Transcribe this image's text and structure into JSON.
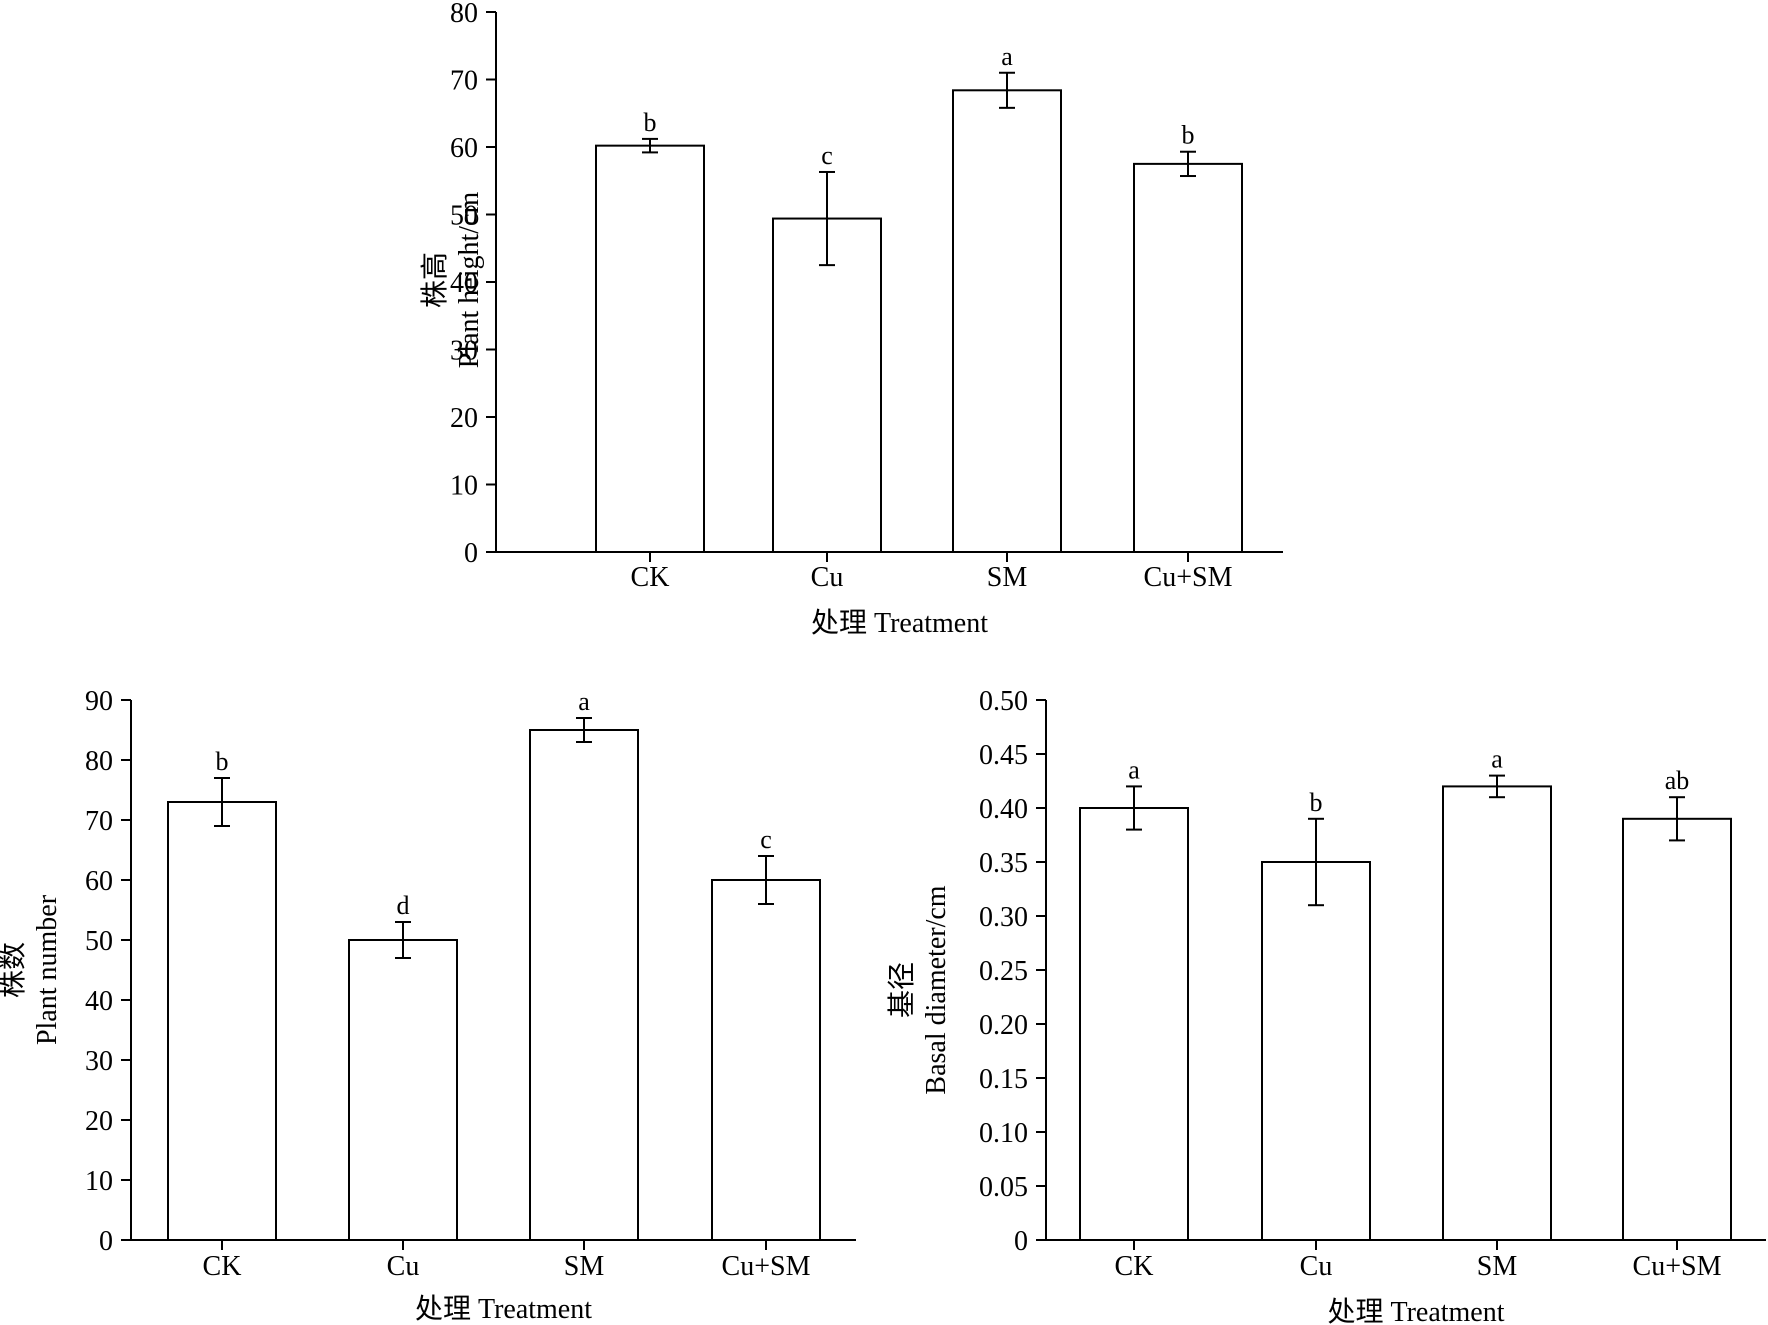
{
  "chart_data": [
    {
      "id": "plant-height",
      "type": "bar",
      "categories": [
        "CK",
        "Cu",
        "SM",
        "Cu+SM"
      ],
      "values": [
        60.2,
        49.4,
        68.4,
        57.5
      ],
      "errors": [
        1.0,
        6.9,
        2.6,
        1.8
      ],
      "significance": [
        "b",
        "c",
        "a",
        "b"
      ],
      "ylabel_cn": "株高",
      "ylabel_en": "Plant height/cm",
      "xlabel": "处理 Treatment",
      "ylim": [
        0,
        80
      ],
      "yticks": [
        0,
        10,
        20,
        30,
        40,
        50,
        60,
        70,
        80
      ],
      "ytick_labels": [
        "0",
        "10",
        "20",
        "30",
        "40",
        "50",
        "60",
        "70",
        "80"
      ]
    },
    {
      "id": "plant-number",
      "type": "bar",
      "categories": [
        "CK",
        "Cu",
        "SM",
        "Cu+SM"
      ],
      "values": [
        73,
        50,
        85,
        60
      ],
      "errors": [
        4,
        3,
        2,
        4
      ],
      "significance": [
        "b",
        "d",
        "a",
        "c"
      ],
      "ylabel_cn": "株数",
      "ylabel_en": "Plant number",
      "xlabel": "处理 Treatment",
      "ylim": [
        0,
        90
      ],
      "yticks": [
        0,
        10,
        20,
        30,
        40,
        50,
        60,
        70,
        80,
        90
      ],
      "ytick_labels": [
        "0",
        "10",
        "20",
        "30",
        "40",
        "50",
        "60",
        "70",
        "80",
        "90"
      ]
    },
    {
      "id": "basal-diameter",
      "type": "bar",
      "categories": [
        "CK",
        "Cu",
        "SM",
        "Cu+SM"
      ],
      "values": [
        0.4,
        0.35,
        0.42,
        0.39
      ],
      "errors": [
        0.02,
        0.04,
        0.01,
        0.02
      ],
      "significance": [
        "a",
        "b",
        "a",
        "ab"
      ],
      "ylabel_cn": "基径",
      "ylabel_en": "Basal diameter/cm",
      "xlabel": "处理 Treatment",
      "ylim": [
        0,
        0.5
      ],
      "yticks": [
        0,
        0.05,
        0.1,
        0.15,
        0.2,
        0.25,
        0.3,
        0.35,
        0.4,
        0.45,
        0.5
      ],
      "ytick_labels": [
        "0",
        "0.05",
        "0.10",
        "0.15",
        "0.20",
        "0.25",
        "0.30",
        "0.35",
        "0.40",
        "0.45",
        "0.50"
      ]
    }
  ]
}
